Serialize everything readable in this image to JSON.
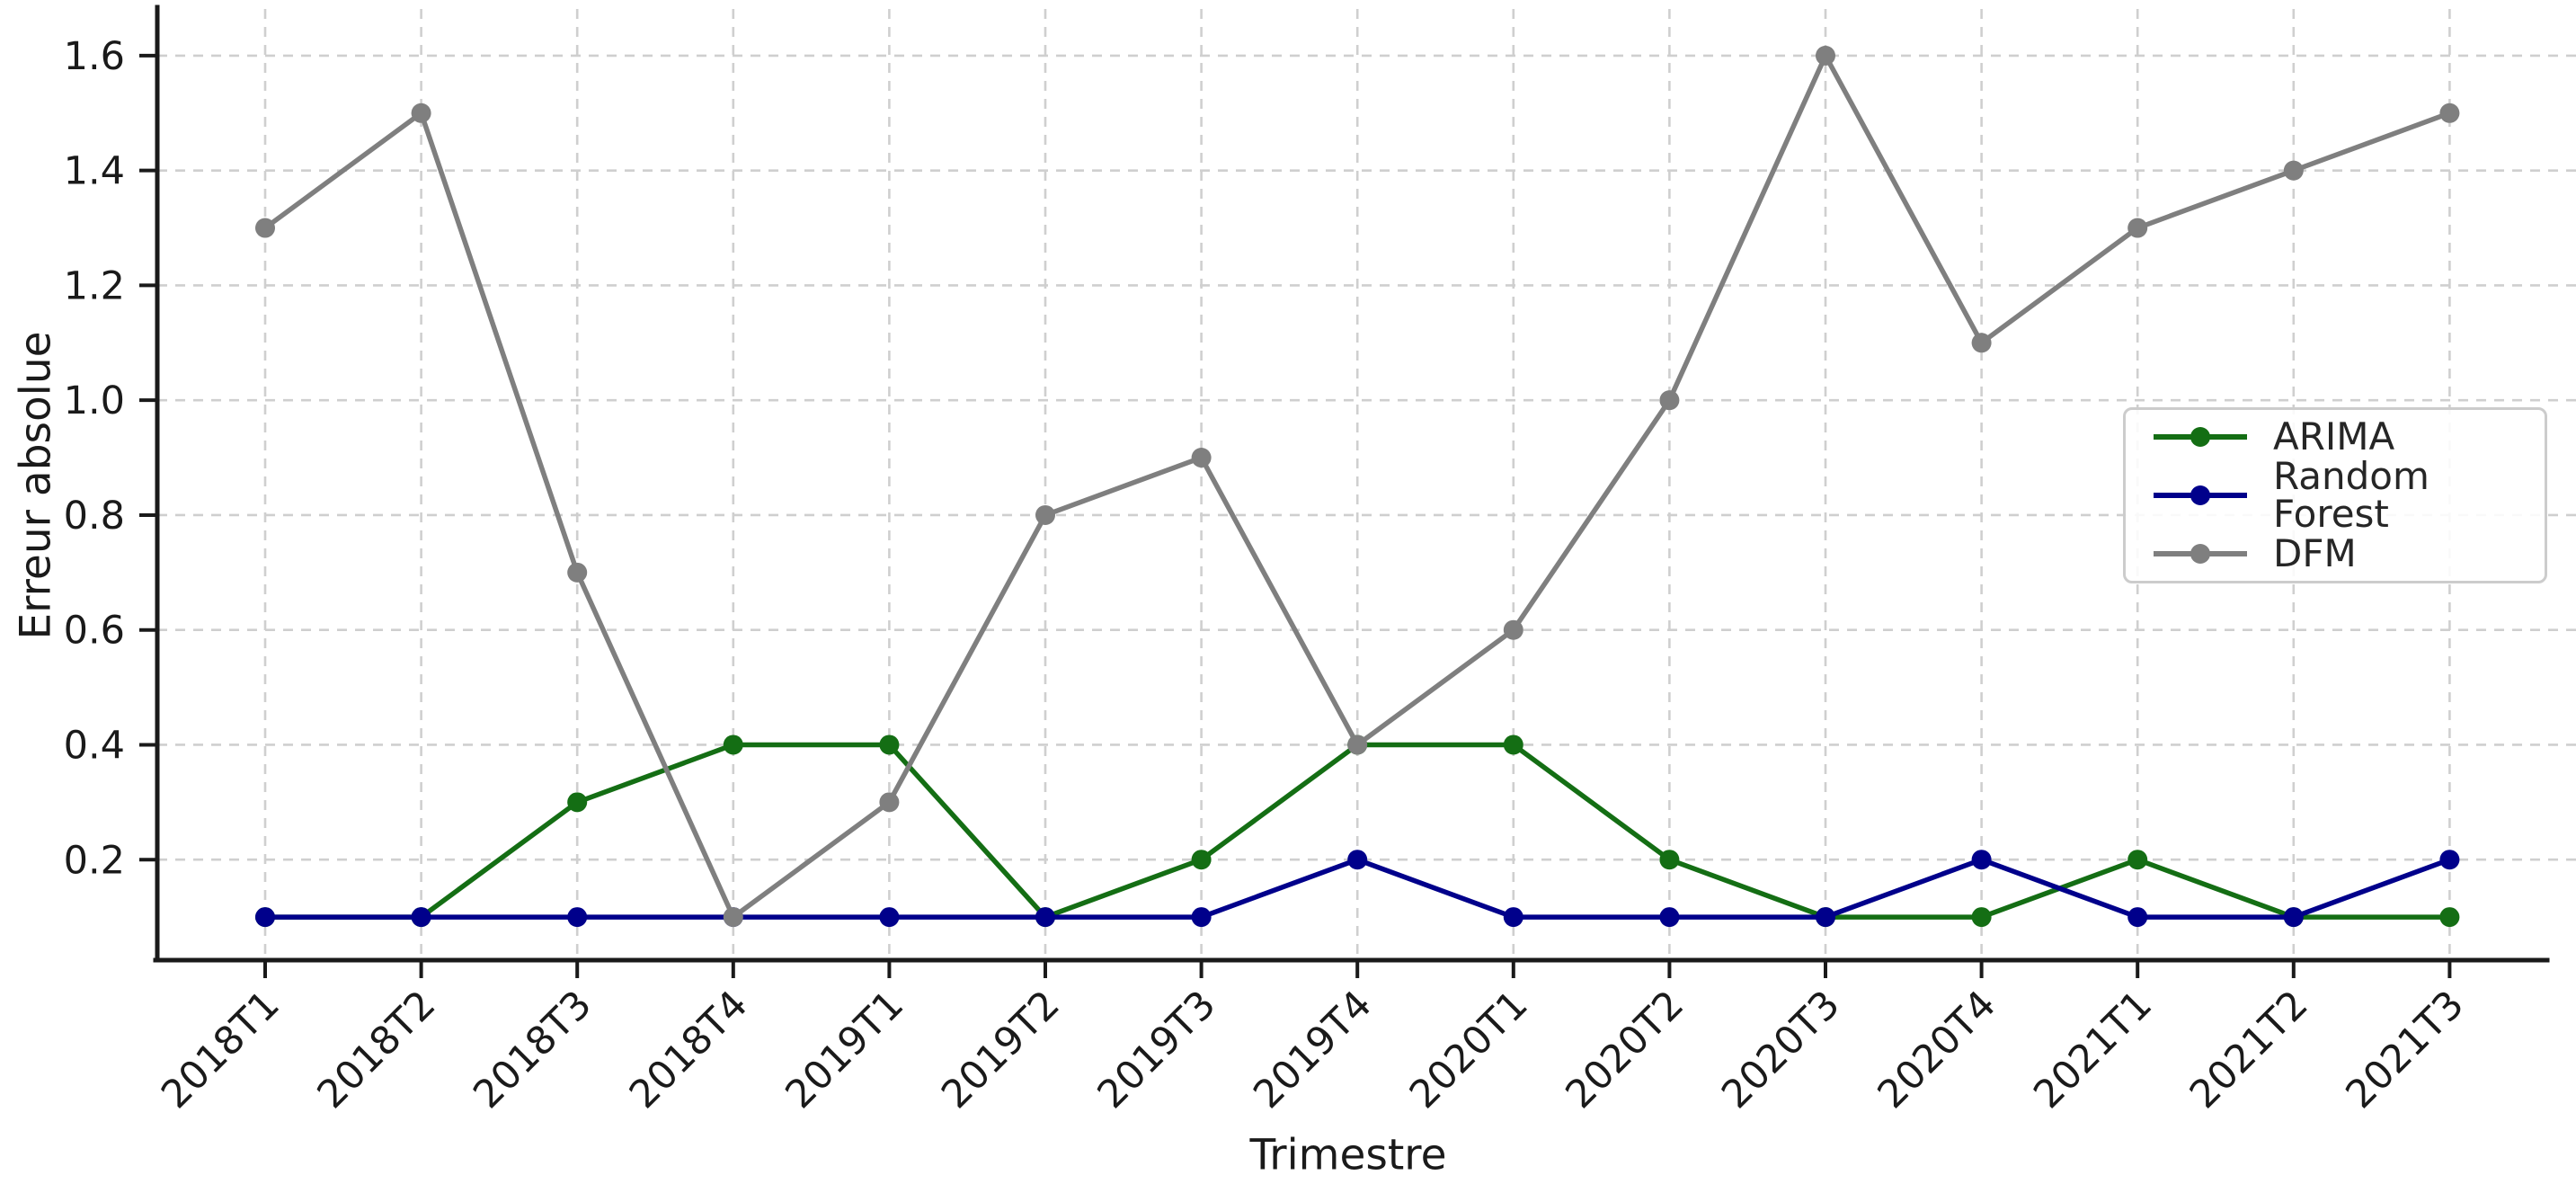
{
  "chart_data": {
    "type": "line",
    "title": "",
    "xlabel": "Trimestre",
    "ylabel": "Erreur absolue",
    "categories": [
      "2018T1",
      "2018T2",
      "2018T3",
      "2018T4",
      "2019T1",
      "2019T2",
      "2019T3",
      "2019T4",
      "2020T1",
      "2020T2",
      "2020T3",
      "2020T4",
      "2021T1",
      "2021T2",
      "2021T3"
    ],
    "series": [
      {
        "name": "ARIMA",
        "color": "#146e14",
        "values": [
          0.1,
          0.1,
          0.3,
          0.4,
          0.4,
          0.1,
          0.2,
          0.4,
          0.4,
          0.2,
          0.1,
          0.1,
          0.2,
          0.1,
          0.1
        ]
      },
      {
        "name": "Random Forest",
        "color": "#00008b",
        "values": [
          0.1,
          0.1,
          0.1,
          0.1,
          0.1,
          0.1,
          0.1,
          0.2,
          0.1,
          0.1,
          0.1,
          0.2,
          0.1,
          0.1,
          0.2
        ]
      },
      {
        "name": "DFM",
        "color": "#7f7f7f",
        "values": [
          1.3,
          1.5,
          0.7,
          0.1,
          0.3,
          0.8,
          0.9,
          0.4,
          0.6,
          1.0,
          1.6,
          1.1,
          1.3,
          1.4,
          1.5
        ]
      }
    ],
    "yticks": [
      0.2,
      0.4,
      0.6,
      0.8,
      1.0,
      1.2,
      1.4,
      1.6
    ],
    "ylim": [
      0.025,
      1.675
    ],
    "x_tick_rotation": 45,
    "grid": "dashed",
    "legend_position": "center-right",
    "marker": "circle"
  },
  "style_colors": {
    "spine": "#1a1a1a",
    "tick_text": "#1a1a1a",
    "grid": "#cfcfcf",
    "background": "#ffffff",
    "legend_border": "#cccccc"
  }
}
